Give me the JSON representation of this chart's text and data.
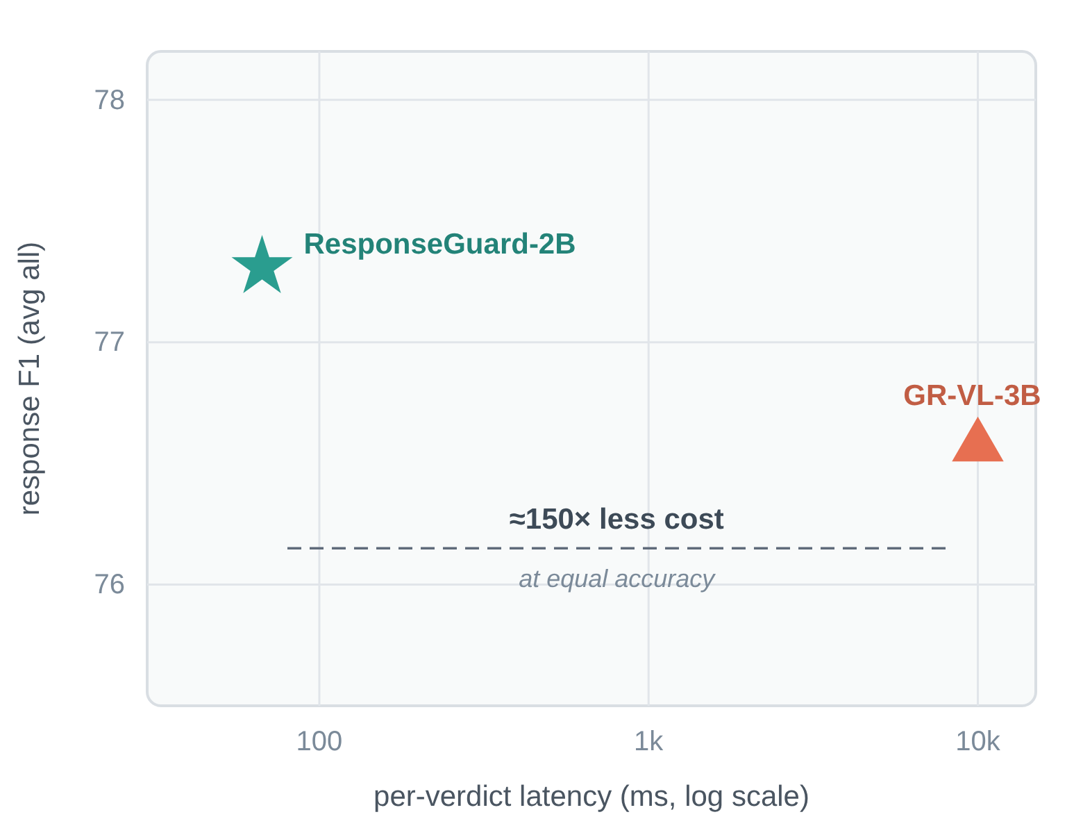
{
  "chart_data": {
    "type": "scatter",
    "xlabel": "per-verdict latency (ms, log scale)",
    "ylabel": "response F1 (avg all)",
    "log": "x",
    "xlim": [
      30,
      15000
    ],
    "xticks": [
      100,
      {
        "value": 1000,
        "label": "1k"
      },
      {
        "value": 10000,
        "label": "10k"
      }
    ],
    "ylim": [
      75.5,
      78.2
    ],
    "yticks": [
      76,
      77,
      78
    ],
    "grid": true,
    "series": [
      {
        "name": "ResponseGuard-2B",
        "color": "#2a9d8f",
        "marker": "star",
        "x": [
          67
        ],
        "values": [
          77.31
        ]
      },
      {
        "name": "GR-VL-3B",
        "color": "#e76f51",
        "marker": "triangle",
        "x": [
          10000
        ],
        "values": [
          76.57
        ]
      },
      {
        "type": "line",
        "color": "#5f6b7a",
        "line_style": "dashed",
        "marker": "none",
        "x": [
          80,
          8000
        ],
        "values": [
          76.15,
          76.15
        ]
      }
    ],
    "annotations": [
      "≈150× less cost",
      "at equal accuracy"
    ]
  }
}
